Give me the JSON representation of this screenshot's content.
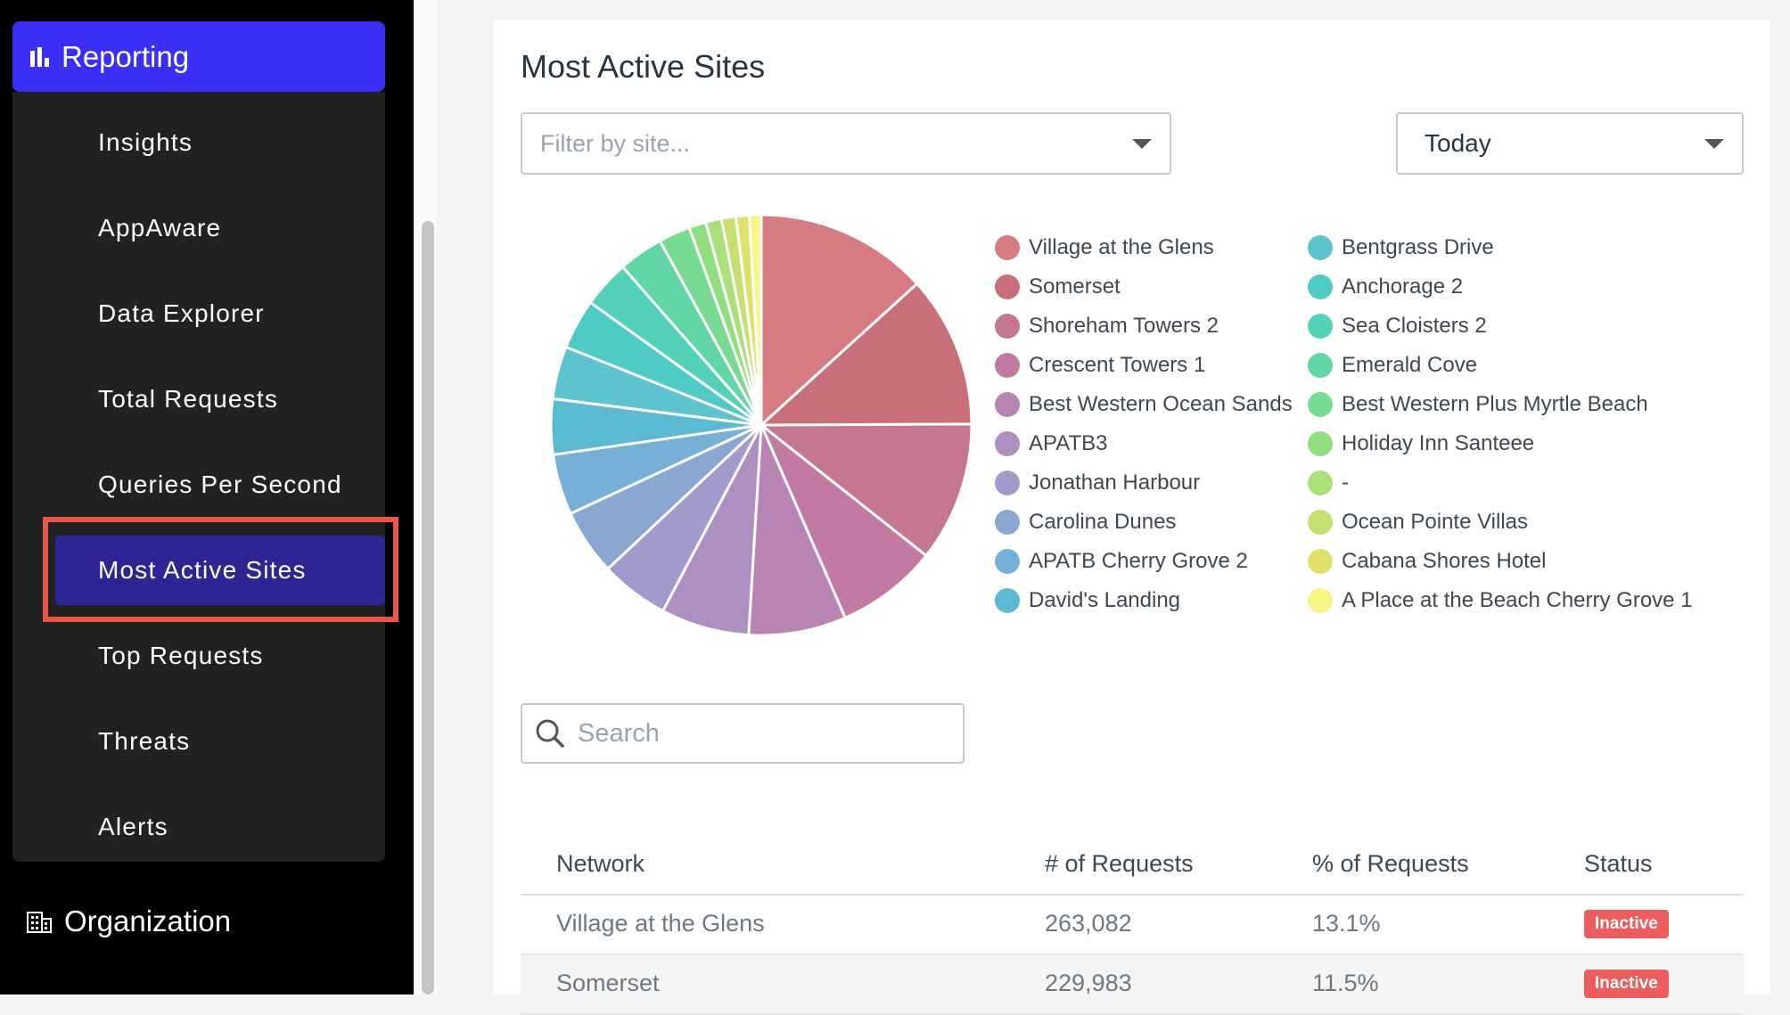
{
  "sidebar": {
    "reporting_label": "Reporting",
    "items": [
      {
        "label": "Insights"
      },
      {
        "label": "AppAware"
      },
      {
        "label": "Data Explorer"
      },
      {
        "label": "Total Requests"
      },
      {
        "label": "Queries Per Second"
      },
      {
        "label": "Most Active Sites"
      },
      {
        "label": "Top Requests"
      },
      {
        "label": "Threats"
      },
      {
        "label": "Alerts"
      }
    ],
    "active_item": "Most Active Sites",
    "organization_label": "Organization"
  },
  "main": {
    "title": "Most Active Sites",
    "site_filter_placeholder": "Filter by site...",
    "period_value": "Today",
    "search_placeholder": "Search"
  },
  "chart_data": {
    "type": "pie",
    "labels": [
      "Village at the Glens",
      "Somerset",
      "Shoreham Towers 2",
      "Crescent Towers 1",
      "Best Western Ocean Sands",
      "APATB3",
      "Jonathan Harbour",
      "Carolina Dunes",
      "APATB Cherry Grove 2",
      "David's Landing",
      "Bentgrass Drive",
      "Anchorage 2",
      "Sea Cloisters 2",
      "Emerald Cove",
      "Best Western Plus Myrtle Beach",
      "Holiday Inn Santeee",
      "-",
      "Ocean Pointe Villas",
      "Cabana Shores Hotel",
      "A Place at the Beach Cherry Grove 1"
    ],
    "values": [
      13.1,
      11.5,
      10.6,
      7.7,
      7.4,
      6.7,
      5.2,
      5.0,
      4.6,
      4.2,
      4.0,
      3.8,
      3.6,
      3.4,
      2.4,
      1.3,
      1.2,
      1.1,
      1.0,
      0.9
    ],
    "colors": [
      "#d67b82",
      "#c8707a",
      "#c57690",
      "#c27aa0",
      "#b784b4",
      "#ad90c2",
      "#a19acb",
      "#8aa7d2",
      "#76b0d6",
      "#5bb9d1",
      "#5cc3cf",
      "#4ecbc5",
      "#53d2b8",
      "#5fd6a3",
      "#77db91",
      "#8fde7f",
      "#a9e07a",
      "#c5e070",
      "#dfe06a",
      "#f7f583"
    ]
  },
  "table": {
    "headers": [
      "Network",
      "# of Requests",
      "% of Requests",
      "Status"
    ],
    "rows": [
      {
        "network": "Village at the Glens",
        "requests": "263,082",
        "percent": "13.1%",
        "status": "Inactive"
      },
      {
        "network": "Somerset",
        "requests": "229,983",
        "percent": "11.5%",
        "status": "Inactive"
      }
    ]
  }
}
